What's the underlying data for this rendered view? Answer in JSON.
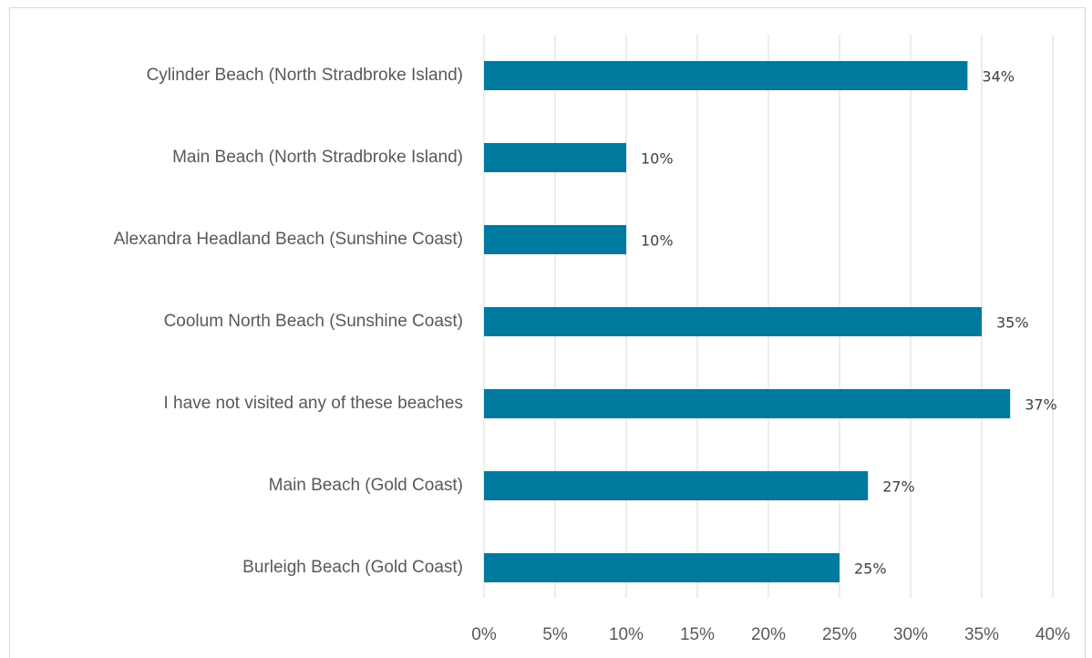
{
  "chart_data": {
    "type": "bar",
    "orientation": "horizontal",
    "categories": [
      "Cylinder Beach (North Stradbroke Island)",
      "Main Beach (North Stradbroke Island)",
      "Alexandra Headland Beach (Sunshine Coast)",
      "Coolum North Beach (Sunshine Coast)",
      "I have not visited any of these beaches",
      "Main Beach (Gold Coast)",
      "Burleigh Beach (Gold Coast)"
    ],
    "values": [
      34,
      10,
      10,
      35,
      37,
      27,
      25
    ],
    "value_labels": [
      "34%",
      "10%",
      "10%",
      "35%",
      "37%",
      "27%",
      "25%"
    ],
    "color": "#00799e",
    "xlim": [
      0,
      40
    ],
    "xticks": [
      {
        "value": 0,
        "label": "0%"
      },
      {
        "value": 5,
        "label": "5%"
      },
      {
        "value": 10,
        "label": "10%"
      },
      {
        "value": 15,
        "label": "15%"
      },
      {
        "value": 20,
        "label": "20%"
      },
      {
        "value": 25,
        "label": "25%"
      },
      {
        "value": 30,
        "label": "30%"
      },
      {
        "value": 35,
        "label": "35%"
      },
      {
        "value": 40,
        "label": "40%"
      }
    ],
    "grid": true
  }
}
